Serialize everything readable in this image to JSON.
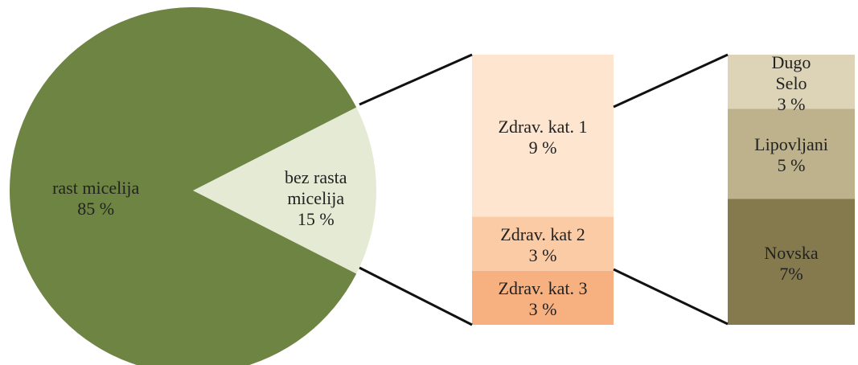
{
  "chart_data": [
    {
      "type": "pie",
      "categories": [
        "rast micelija",
        "bez rasta micelija"
      ],
      "values": [
        85,
        15
      ],
      "value_labels": [
        "85 %",
        "15 %"
      ],
      "colors": [
        "#6e8443",
        "#e4ead3"
      ]
    },
    {
      "type": "stacked-bar",
      "categories": [
        "Zdrav. kat. 1",
        "Zdrav. kat 2",
        "Zdrav. kat. 3"
      ],
      "values": [
        9,
        3,
        3
      ],
      "value_labels": [
        "9 %",
        "3 %",
        "3 %"
      ],
      "colors": [
        "#fde5d0",
        "#fbcba6",
        "#f7b07f"
      ]
    },
    {
      "type": "stacked-bar",
      "categories": [
        "Dugo Selo",
        "Lipovljani",
        "Novska"
      ],
      "values": [
        3,
        5,
        7
      ],
      "value_labels": [
        "3 %",
        "5 %",
        "7%"
      ],
      "colors": [
        "#ddd4b8",
        "#bdb28b",
        "#857a4e"
      ]
    }
  ]
}
